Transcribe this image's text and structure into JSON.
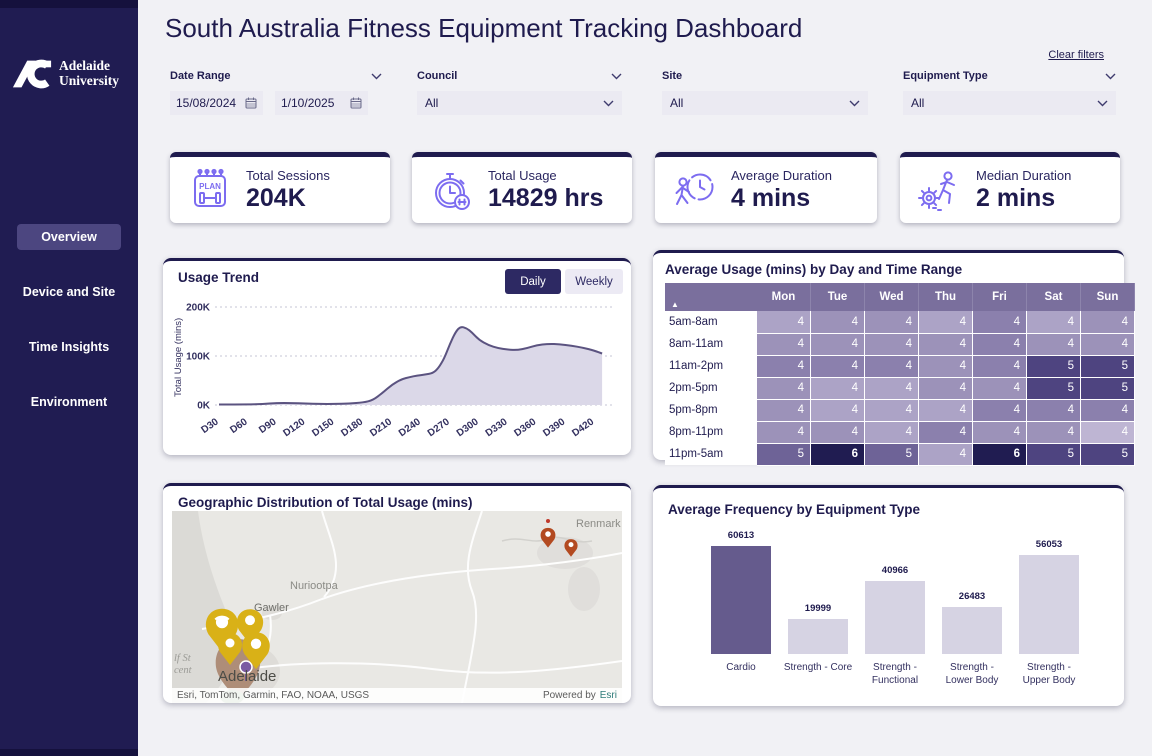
{
  "page": {
    "title": "South Australia Fitness Equipment Tracking Dashboard",
    "clear_filters": "Clear filters"
  },
  "sidebar": {
    "brand_line1": "Adelaide",
    "brand_line2": "University",
    "items": [
      {
        "label": "Overview",
        "active": true
      },
      {
        "label": "Device and Site",
        "active": false
      },
      {
        "label": "Time Insights",
        "active": false
      },
      {
        "label": "Environment",
        "active": false
      }
    ]
  },
  "filters": {
    "date_range": {
      "label": "Date Range",
      "start_value": "15/08/2024",
      "end_value": "1/10/2025"
    },
    "council": {
      "label": "Council",
      "value": "All"
    },
    "site": {
      "label": "Site",
      "value": "All"
    },
    "equipment": {
      "label": "Equipment Type",
      "value": "All"
    }
  },
  "kpis": [
    {
      "label": "Total Sessions",
      "value": "204K",
      "icon": "plan-calendar-dumbbell-icon"
    },
    {
      "label": "Total Usage",
      "value": "14829 hrs",
      "icon": "stopwatch-dumbbell-icon"
    },
    {
      "label": "Average Duration",
      "value": "4 mins",
      "icon": "person-clock-icon"
    },
    {
      "label": "Median Duration",
      "value": "2 mins",
      "icon": "gear-runner-icon"
    }
  ],
  "icons": {
    "sort_ascending": "▲"
  },
  "colors": {
    "navy": "#1f1b4e",
    "violet_icon": "#7c6cf0",
    "heat_header": "#7a6f9d",
    "bar_highlight": "#655b8d",
    "bar_light": "#d6d3e3",
    "area_fill": "#dbd8e8",
    "area_line": "#5b5380",
    "esri_teal": "#2e7b78"
  },
  "map": {
    "title": "Geographic Distribution of Total Usage (mins)",
    "labels": {
      "town1": "Nuriootpa",
      "town2": "Gawler",
      "city": "Adelaide",
      "town3": "Renmark",
      "water_line1": "lf St",
      "water_line2": "cent"
    },
    "attribution": {
      "sources": "Esri, TomTom, Garmin, FAO, NOAA, USGS",
      "powered_prefix": "Powered by",
      "powered_brand": "Esri"
    }
  },
  "chart_data": [
    {
      "id": "usage_trend",
      "type": "area",
      "title": "Usage Trend",
      "toggles": [
        "Daily",
        "Weekly"
      ],
      "active_toggle": "Daily",
      "ylabel": "Total Usage (mins)",
      "ylim": [
        0,
        200
      ],
      "ytick_values": [
        0,
        100,
        200
      ],
      "ytick_labels": [
        "0K",
        "100K",
        "200K"
      ],
      "grid": "dotted horizontal",
      "xlim": [
        30,
        430
      ],
      "x_ticks": [
        30,
        60,
        90,
        120,
        150,
        180,
        210,
        240,
        270,
        300,
        330,
        360,
        390,
        420
      ],
      "x_tick_labels": [
        "D30",
        "D60",
        "D90",
        "D120",
        "D150",
        "D180",
        "D210",
        "D240",
        "D270",
        "D300",
        "D330",
        "D360",
        "D390",
        "D420"
      ],
      "points_unit": "thousand minutes",
      "points": [
        [
          30,
          1
        ],
        [
          60,
          1
        ],
        [
          75,
          2
        ],
        [
          90,
          4
        ],
        [
          105,
          4
        ],
        [
          120,
          3
        ],
        [
          135,
          2
        ],
        [
          150,
          2
        ],
        [
          165,
          3
        ],
        [
          180,
          5
        ],
        [
          190,
          10
        ],
        [
          200,
          25
        ],
        [
          210,
          42
        ],
        [
          220,
          53
        ],
        [
          228,
          57
        ],
        [
          236,
          60
        ],
        [
          244,
          62
        ],
        [
          252,
          65
        ],
        [
          258,
          75
        ],
        [
          264,
          95
        ],
        [
          270,
          125
        ],
        [
          276,
          150
        ],
        [
          281,
          160
        ],
        [
          287,
          157
        ],
        [
          293,
          148
        ],
        [
          300,
          133
        ],
        [
          310,
          122
        ],
        [
          320,
          116
        ],
        [
          330,
          113
        ],
        [
          340,
          112
        ],
        [
          350,
          116
        ],
        [
          360,
          122
        ],
        [
          372,
          125
        ],
        [
          384,
          124
        ],
        [
          396,
          121
        ],
        [
          408,
          117
        ],
        [
          420,
          111
        ],
        [
          428,
          105
        ]
      ]
    },
    {
      "id": "usage_by_day_time",
      "type": "heatmap",
      "title": "Average Usage (mins) by Day and Time Range",
      "columns": [
        "Mon",
        "Tue",
        "Wed",
        "Thu",
        "Fri",
        "Sat",
        "Sun"
      ],
      "rows": [
        "5am-8am",
        "8am-11am",
        "11am-2pm",
        "2pm-5pm",
        "5pm-8pm",
        "8pm-11pm",
        "11pm-5am"
      ],
      "values": [
        [
          4,
          4,
          4,
          4,
          4,
          4,
          4
        ],
        [
          4,
          4,
          4,
          4,
          4,
          4,
          4
        ],
        [
          4,
          4,
          4,
          4,
          4,
          5,
          5
        ],
        [
          4,
          4,
          4,
          4,
          4,
          5,
          5
        ],
        [
          4,
          4,
          4,
          4,
          4,
          4,
          4
        ],
        [
          4,
          4,
          4,
          4,
          4,
          4,
          4
        ],
        [
          5,
          6,
          5,
          4,
          6,
          5,
          5
        ]
      ],
      "shade_levels": [
        [
          2,
          3,
          3,
          2,
          4,
          2,
          3
        ],
        [
          3,
          3,
          3,
          3,
          4,
          3,
          3
        ],
        [
          4,
          4,
          4,
          3,
          4,
          6,
          6
        ],
        [
          3,
          2,
          2,
          3,
          3,
          6,
          6
        ],
        [
          3,
          2,
          2,
          2,
          4,
          4,
          4
        ],
        [
          3,
          3,
          2,
          4,
          3,
          3,
          1
        ],
        [
          5,
          7,
          5,
          2,
          7,
          6,
          6
        ]
      ],
      "palette": [
        "#beb5d3",
        "#aca3c6",
        "#9c92b9",
        "#8b80ad",
        "#6e6397",
        "#4e4480",
        "#201c51"
      ]
    },
    {
      "id": "equipment_frequency",
      "type": "bar",
      "title": "Average Frequency by Equipment Type",
      "categories": [
        "Cardio",
        "Strength - Core",
        "Strength -\nFunctional",
        "Strength -\nLower Body",
        "Strength -\nUpper Body"
      ],
      "values": [
        60613,
        19999,
        40966,
        26483,
        56053
      ],
      "axis_max": 62000,
      "highlight_index": 0
    }
  ]
}
